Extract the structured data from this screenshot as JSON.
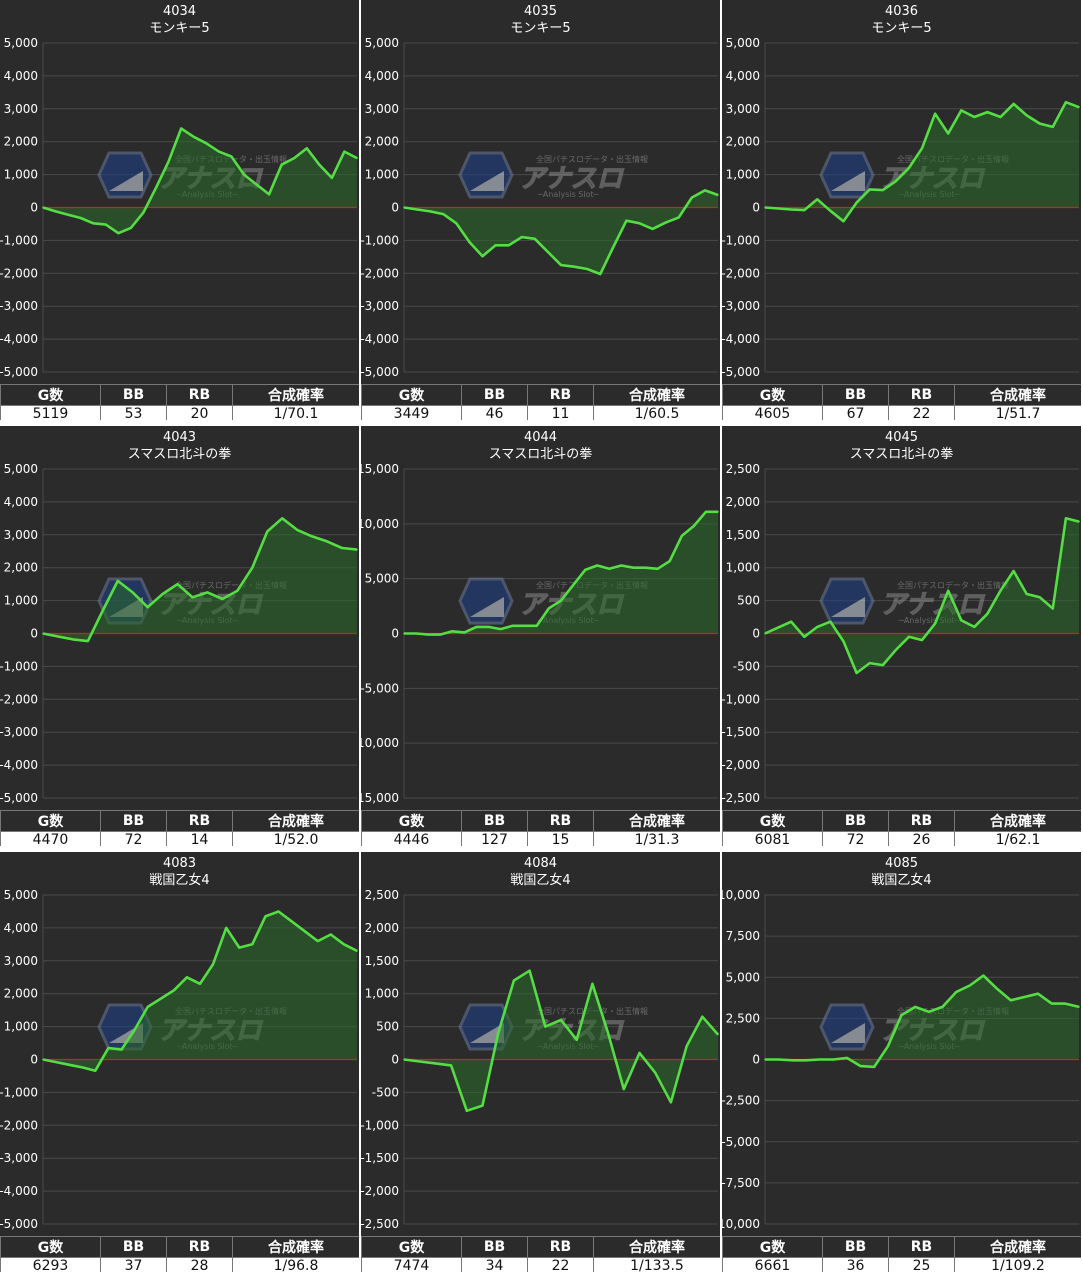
{
  "colors": {
    "line": "#55dd44",
    "fill": "#2a6a2a",
    "zero": "#cc2222",
    "grid": "#4a4a4a",
    "panel": "#2b2b2b"
  },
  "watermark": {
    "top_text": "全国パチスロデータ・出玉情報",
    "logo_text": "アナスロ",
    "sub_text": "─Analysis Slot─"
  },
  "headers": [
    "G数",
    "BB",
    "RB",
    "合成確率"
  ],
  "panels": [
    {
      "id": "4034",
      "machine": "モンキー5",
      "stats": {
        "games": "5119",
        "bb": "53",
        "rb": "20",
        "prob": "1/70.1"
      },
      "chart_data": {
        "type": "area",
        "ylim": [
          -5000,
          5000
        ],
        "yticks": [
          "5,000",
          "4,000",
          "3,000",
          "2,000",
          "1,000",
          "0",
          "-1,000",
          "-2,000",
          "-3,000",
          "-4,000",
          "-5,000"
        ],
        "values": [
          0,
          -120,
          -220,
          -320,
          -480,
          -520,
          -780,
          -620,
          -150,
          600,
          1400,
          2400,
          2150,
          1950,
          1700,
          1550,
          1000,
          700,
          400,
          1300,
          1500,
          1800,
          1300,
          900,
          1700,
          1500
        ]
      }
    },
    {
      "id": "4035",
      "machine": "モンキー5",
      "stats": {
        "games": "3449",
        "bb": "46",
        "rb": "11",
        "prob": "1/60.5"
      },
      "chart_data": {
        "type": "area",
        "ylim": [
          -5000,
          5000
        ],
        "yticks": [
          "5,000",
          "4,000",
          "3,000",
          "2,000",
          "1,000",
          "0",
          "-1,000",
          "-2,000",
          "-3,000",
          "-4,000",
          "-5,000"
        ],
        "values": [
          0,
          -60,
          -120,
          -200,
          -480,
          -1050,
          -1480,
          -1150,
          -1150,
          -900,
          -950,
          -1350,
          -1750,
          -1800,
          -1870,
          -2020,
          -1200,
          -400,
          -480,
          -650,
          -460,
          -300,
          300,
          520,
          380
        ]
      }
    },
    {
      "id": "4036",
      "machine": "モンキー5",
      "stats": {
        "games": "4605",
        "bb": "67",
        "rb": "22",
        "prob": "1/51.7"
      },
      "chart_data": {
        "type": "area",
        "ylim": [
          -5000,
          5000
        ],
        "yticks": [
          "5,000",
          "4,000",
          "3,000",
          "2,000",
          "1,000",
          "0",
          "-1,000",
          "-2,000",
          "-3,000",
          "-4,000",
          "-5,000"
        ],
        "values": [
          0,
          -30,
          -60,
          -80,
          250,
          -100,
          -420,
          150,
          550,
          530,
          800,
          1200,
          1800,
          2850,
          2250,
          2950,
          2750,
          2900,
          2750,
          3150,
          2800,
          2550,
          2450,
          3200,
          3050
        ]
      }
    },
    {
      "id": "4043",
      "machine": "スマスロ北斗の拳",
      "stats": {
        "games": "4470",
        "bb": "72",
        "rb": "14",
        "prob": "1/52.0"
      },
      "chart_data": {
        "type": "area",
        "ylim": [
          -5000,
          5000
        ],
        "yticks": [
          "5,000",
          "4,000",
          "3,000",
          "2,000",
          "1,000",
          "0",
          "-1,000",
          "-2,000",
          "-3,000",
          "-4,000",
          "-5,000"
        ],
        "values": [
          0,
          -90,
          -180,
          -230,
          700,
          1600,
          1250,
          800,
          1200,
          1500,
          1100,
          1250,
          1050,
          1300,
          2000,
          3100,
          3500,
          3150,
          2950,
          2800,
          2600,
          2550
        ]
      }
    },
    {
      "id": "4044",
      "machine": "スマスロ北斗の拳",
      "stats": {
        "games": "4446",
        "bb": "127",
        "rb": "15",
        "prob": "1/31.3"
      },
      "chart_data": {
        "type": "area",
        "ylim": [
          -15000,
          15000
        ],
        "yticks": [
          "15,000",
          "10,000",
          "5,000",
          "0",
          "-5,000",
          "-10,000",
          "-15,000"
        ],
        "values": [
          0,
          0,
          -100,
          -100,
          200,
          100,
          600,
          600,
          400,
          700,
          700,
          700,
          2300,
          3000,
          4400,
          5800,
          6200,
          5900,
          6200,
          6000,
          6000,
          5900,
          6600,
          8900,
          9800,
          11100,
          11100
        ]
      }
    },
    {
      "id": "4045",
      "machine": "スマスロ北斗の拳",
      "stats": {
        "games": "6081",
        "bb": "72",
        "rb": "26",
        "prob": "1/62.1"
      },
      "chart_data": {
        "type": "area",
        "ylim": [
          -2500,
          2500
        ],
        "yticks": [
          "2,500",
          "2,000",
          "1,500",
          "1,000",
          "500",
          "0",
          "-500",
          "-1,000",
          "-1,500",
          "-2,000",
          "-2,500"
        ],
        "values": [
          0,
          90,
          180,
          -50,
          100,
          180,
          -120,
          -600,
          -450,
          -480,
          -250,
          -50,
          -100,
          150,
          650,
          200,
          100,
          300,
          650,
          950,
          600,
          550,
          380,
          1750,
          1700
        ]
      }
    },
    {
      "id": "4083",
      "machine": "戦国乙女4",
      "stats": {
        "games": "6293",
        "bb": "37",
        "rb": "28",
        "prob": "1/96.8"
      },
      "chart_data": {
        "type": "area",
        "ylim": [
          -5000,
          5000
        ],
        "yticks": [
          "5,000",
          "4,000",
          "3,000",
          "2,000",
          "1,000",
          "0",
          "-1,000",
          "-2,000",
          "-3,000",
          "-4,000",
          "-5,000"
        ],
        "values": [
          0,
          -80,
          -160,
          -240,
          -340,
          350,
          300,
          900,
          1600,
          1850,
          2100,
          2500,
          2300,
          2900,
          4000,
          3400,
          3500,
          4350,
          4500,
          4200,
          3900,
          3600,
          3800,
          3500,
          3300
        ]
      }
    },
    {
      "id": "4084",
      "machine": "戦国乙女4",
      "stats": {
        "games": "7474",
        "bb": "34",
        "rb": "22",
        "prob": "1/133.5"
      },
      "chart_data": {
        "type": "area",
        "ylim": [
          -2500,
          2500
        ],
        "yticks": [
          "2,500",
          "2,000",
          "1,500",
          "1,000",
          "500",
          "0",
          "-500",
          "-1,000",
          "-1,500",
          "-2,000",
          "-2,500"
        ],
        "values": [
          0,
          -30,
          -60,
          -90,
          -780,
          -700,
          400,
          1200,
          1350,
          500,
          600,
          300,
          1150,
          400,
          -450,
          100,
          -200,
          -650,
          200,
          650,
          380
        ]
      }
    },
    {
      "id": "4085",
      "machine": "戦国乙女4",
      "stats": {
        "games": "6661",
        "bb": "36",
        "rb": "25",
        "prob": "1/109.2"
      },
      "chart_data": {
        "type": "area",
        "ylim": [
          -10000,
          10000
        ],
        "yticks": [
          "10,000",
          "7,500",
          "5,000",
          "2,500",
          "0",
          "-2,500",
          "-5,000",
          "-7,500",
          "-10,000"
        ],
        "values": [
          0,
          0,
          -50,
          -50,
          0,
          0,
          100,
          -400,
          -450,
          800,
          2700,
          3200,
          2900,
          3200,
          4100,
          4500,
          5100,
          4300,
          3600,
          3800,
          4000,
          3400,
          3400,
          3200
        ]
      }
    }
  ]
}
